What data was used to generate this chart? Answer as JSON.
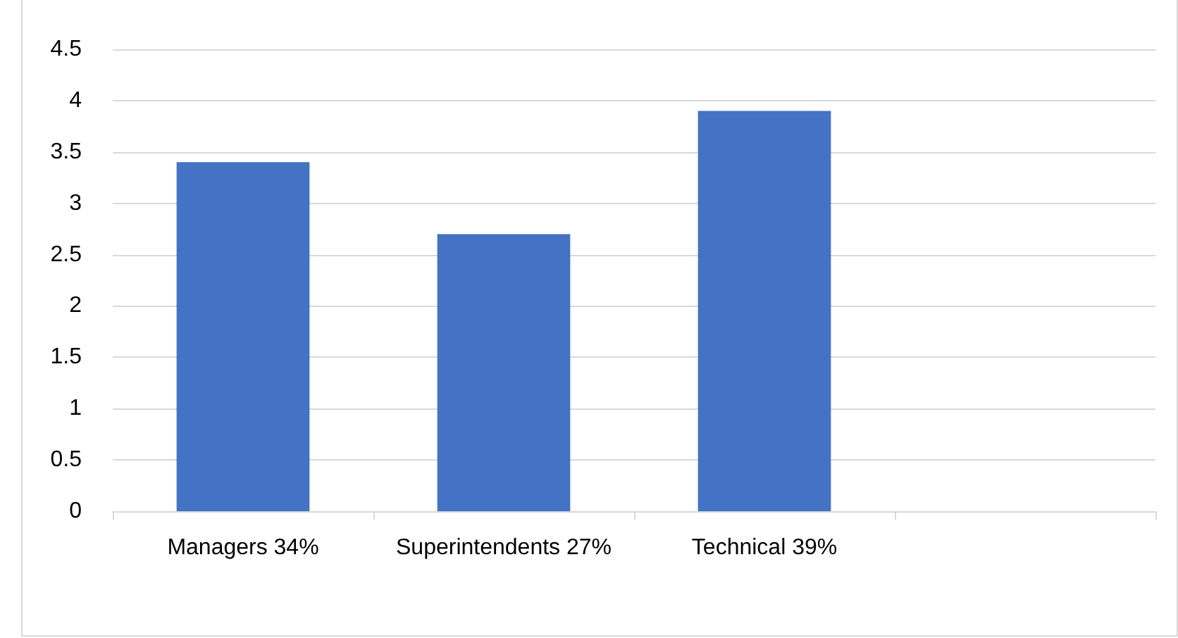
{
  "chart_data": {
    "type": "bar",
    "categories": [
      "Managers 34%",
      "Superintendents 27%",
      "Technical 39%",
      null
    ],
    "values": [
      3.4,
      2.7,
      3.9,
      null
    ],
    "color": "#4472c4",
    "ylim": [
      0,
      4.5
    ],
    "yticks": [
      0,
      0.5,
      1,
      1.5,
      2,
      2.5,
      3,
      3.5,
      4,
      4.5
    ],
    "grid": "y"
  }
}
